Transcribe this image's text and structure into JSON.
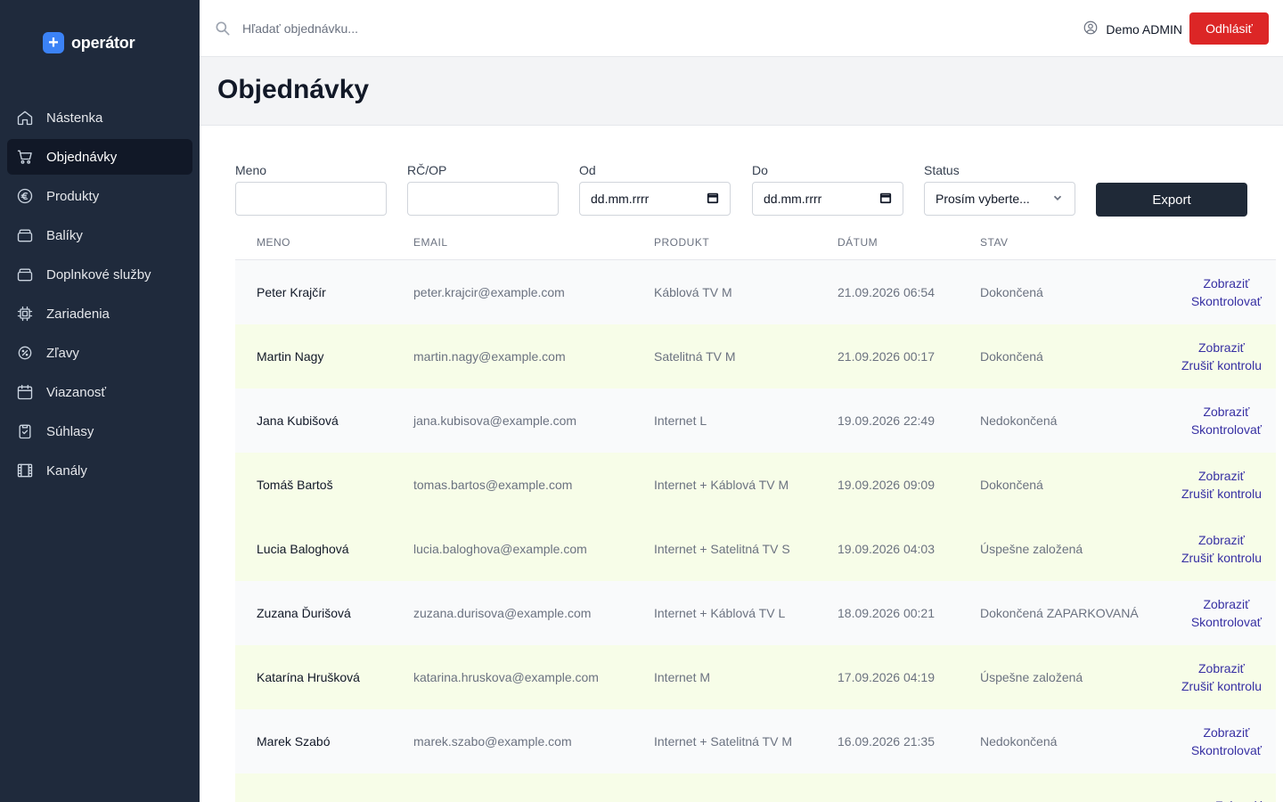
{
  "brand": {
    "name": "operátor"
  },
  "sidebar": {
    "items": [
      {
        "label": "Nástenka",
        "icon": "home-icon",
        "active": false
      },
      {
        "label": "Objednávky",
        "icon": "cart-icon",
        "active": true
      },
      {
        "label": "Produkty",
        "icon": "euro-icon",
        "active": false
      },
      {
        "label": "Balíky",
        "icon": "package-icon",
        "active": false
      },
      {
        "label": "Doplnkové služby",
        "icon": "package-icon",
        "active": false
      },
      {
        "label": "Zariadenia",
        "icon": "chip-icon",
        "active": false
      },
      {
        "label": "Zľavy",
        "icon": "discount-icon",
        "active": false
      },
      {
        "label": "Viazanosť",
        "icon": "calendar-icon",
        "active": false
      },
      {
        "label": "Súhlasy",
        "icon": "clipboard-check-icon",
        "active": false
      },
      {
        "label": "Kanály",
        "icon": "film-icon",
        "active": false
      }
    ]
  },
  "header": {
    "search_placeholder": "Hľadať objednávku...",
    "user_name": "Demo ADMIN",
    "logout_label": "Odhlásiť"
  },
  "page": {
    "title": "Objednávky"
  },
  "filters": {
    "name_label": "Meno",
    "id_label": "RČ/OP",
    "from_label": "Od",
    "from_value": "dd.mm.rrrr",
    "to_label": "Do",
    "to_value": "dd.mm.rrrr",
    "status_label": "Status",
    "status_value": "Prosím vyberte...",
    "export_label": "Export"
  },
  "table": {
    "columns": [
      "MENO",
      "EMAIL",
      "PRODUKT",
      "DÁTUM",
      "STAV"
    ],
    "rows": [
      {
        "name": "Peter Krajčír",
        "email": "peter.krajcir@example.com",
        "product": "Káblová TV M",
        "date": "21.09.2026 06:54",
        "status": "Dokončená",
        "action1": "Zobraziť",
        "action2": "Skontrolovať",
        "highlight": false
      },
      {
        "name": "Martin Nagy",
        "email": "martin.nagy@example.com",
        "product": "Satelitná TV M",
        "date": "21.09.2026 00:17",
        "status": "Dokončená",
        "action1": "Zobraziť",
        "action2": "Zrušiť kontrolu",
        "highlight": true
      },
      {
        "name": "Jana Kubišová",
        "email": "jana.kubisova@example.com",
        "product": "Internet L",
        "date": "19.09.2026 22:49",
        "status": "Nedokončená",
        "action1": "Zobraziť",
        "action2": "Skontrolovať",
        "highlight": false
      },
      {
        "name": "Tomáš Bartoš",
        "email": "tomas.bartos@example.com",
        "product": "Internet + Káblová TV M",
        "date": "19.09.2026 09:09",
        "status": "Dokončená",
        "action1": "Zobraziť",
        "action2": "Zrušiť kontrolu",
        "highlight": true
      },
      {
        "name": "Lucia Baloghová",
        "email": "lucia.baloghova@example.com",
        "product": "Internet + Satelitná TV S",
        "date": "19.09.2026 04:03",
        "status": "Úspešne založená",
        "action1": "Zobraziť",
        "action2": "Zrušiť kontrolu",
        "highlight": true
      },
      {
        "name": "Zuzana Ďurišová",
        "email": "zuzana.durisova@example.com",
        "product": "Internet + Káblová TV L",
        "date": "18.09.2026 00:21",
        "status": "Dokončená ZAPARKOVANÁ",
        "action1": "Zobraziť",
        "action2": "Skontrolovať",
        "highlight": false
      },
      {
        "name": "Katarína Hrušková",
        "email": "katarina.hruskova@example.com",
        "product": "Internet M",
        "date": "17.09.2026 04:19",
        "status": "Úspešne založená",
        "action1": "Zobraziť",
        "action2": "Zrušiť kontrolu",
        "highlight": true
      },
      {
        "name": "Marek Szabó",
        "email": "marek.szabo@example.com",
        "product": "Internet + Satelitná TV M",
        "date": "16.09.2026 21:35",
        "status": "Nedokončená",
        "action1": "Zobraziť",
        "action2": "Skontrolovať",
        "highlight": false
      },
      {
        "name": "",
        "email": "",
        "product": "",
        "date": "",
        "status": "",
        "action1": "Zobraziť",
        "action2": "",
        "highlight": true
      }
    ]
  }
}
